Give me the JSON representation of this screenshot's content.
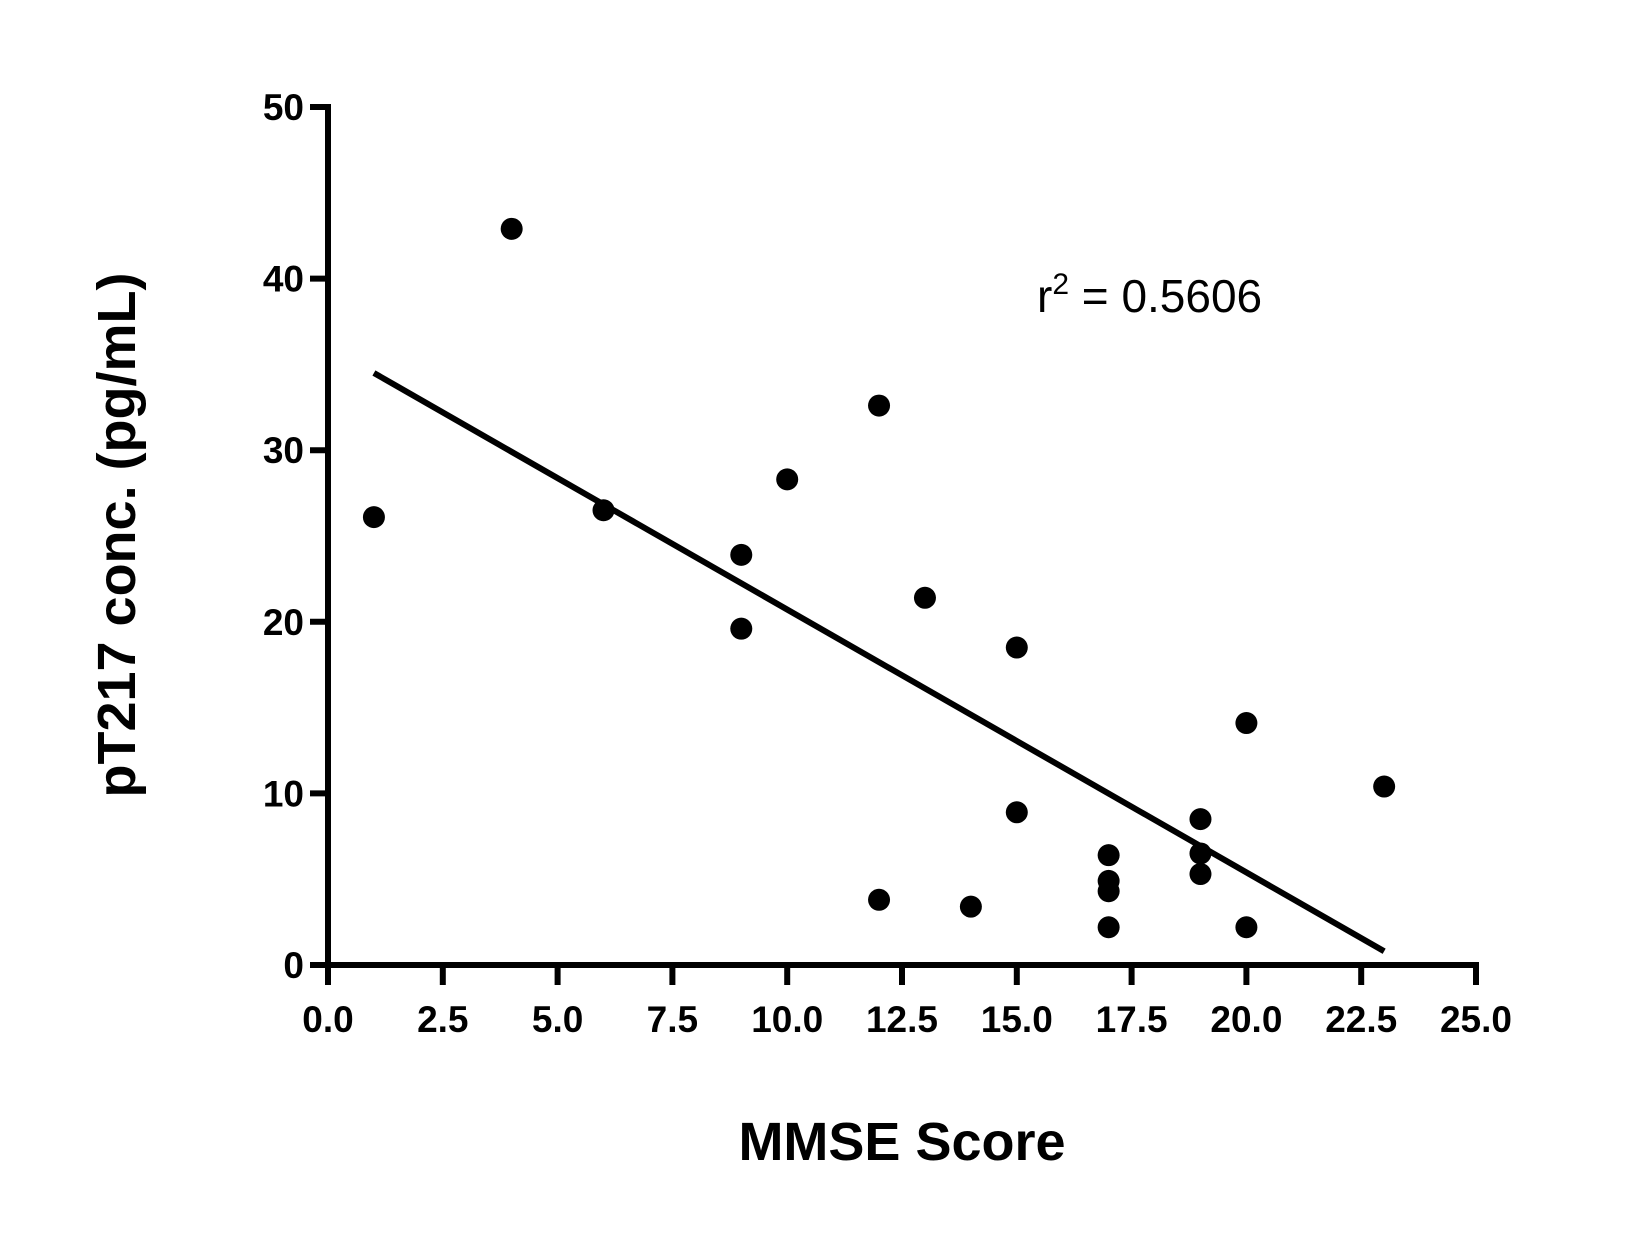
{
  "chart_data": {
    "type": "scatter",
    "xlabel": "MMSE Score",
    "ylabel": "pT217 conc. (pg/mL)",
    "xlim": [
      0,
      25
    ],
    "ylim": [
      0,
      50
    ],
    "xticks": [
      "0.0",
      "2.5",
      "5.0",
      "7.5",
      "10.0",
      "12.5",
      "15.0",
      "17.5",
      "20.0",
      "22.5",
      "25.0"
    ],
    "xtick_values": [
      0,
      2.5,
      5,
      7.5,
      10,
      12.5,
      15,
      17.5,
      20,
      22.5,
      25
    ],
    "yticks": [
      "0",
      "10",
      "20",
      "30",
      "40",
      "50"
    ],
    "ytick_values": [
      0,
      10,
      20,
      30,
      40,
      50
    ],
    "grid": false,
    "points": [
      {
        "x": 1,
        "y": 26.1
      },
      {
        "x": 4,
        "y": 42.9
      },
      {
        "x": 6,
        "y": 26.5
      },
      {
        "x": 9,
        "y": 23.9
      },
      {
        "x": 9,
        "y": 19.6
      },
      {
        "x": 10,
        "y": 28.3
      },
      {
        "x": 12,
        "y": 32.6
      },
      {
        "x": 12,
        "y": 3.8
      },
      {
        "x": 13,
        "y": 21.4
      },
      {
        "x": 14,
        "y": 3.4
      },
      {
        "x": 15,
        "y": 18.5
      },
      {
        "x": 15,
        "y": 8.9
      },
      {
        "x": 17,
        "y": 6.4
      },
      {
        "x": 17,
        "y": 4.9
      },
      {
        "x": 17,
        "y": 4.3
      },
      {
        "x": 17,
        "y": 2.2
      },
      {
        "x": 19,
        "y": 8.5
      },
      {
        "x": 19,
        "y": 6.5
      },
      {
        "x": 19,
        "y": 5.3
      },
      {
        "x": 20,
        "y": 14.1
      },
      {
        "x": 20,
        "y": 2.2
      },
      {
        "x": 23,
        "y": 10.4
      }
    ],
    "regression_line": {
      "x": [
        1,
        23
      ],
      "y": [
        34.5,
        0.8
      ]
    },
    "annotation": {
      "base": "r",
      "sup": "2",
      "text": " = 0.5606"
    }
  }
}
